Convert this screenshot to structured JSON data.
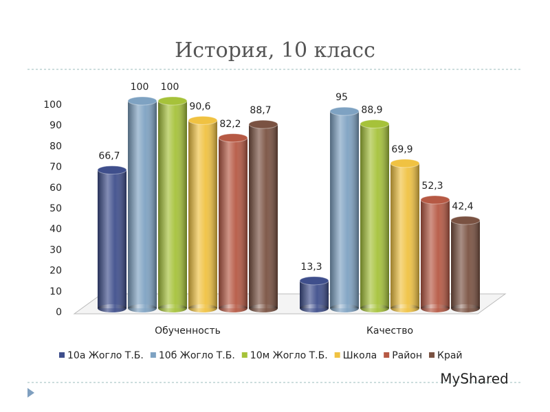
{
  "chart_data": {
    "type": "bar3d",
    "title": "История, 10 класс",
    "categories": [
      "Обученность",
      "Качество"
    ],
    "series": [
      {
        "name": "10а Жогло Т.Б.",
        "color": "#3f4f8c",
        "values": [
          66.7,
          13.3
        ],
        "value_labels": [
          "66,7",
          "13,3"
        ]
      },
      {
        "name": "10б Жогло Т.Б.",
        "color": "#7ea2c2",
        "values": [
          100,
          95
        ],
        "value_labels": [
          "100",
          "95"
        ]
      },
      {
        "name": "10м Жогло Т.Б.",
        "color": "#a6c23a",
        "values": [
          100,
          88.9
        ],
        "value_labels": [
          "100",
          "88,9"
        ]
      },
      {
        "name": "Школа",
        "color": "#f0c242",
        "values": [
          90.6,
          69.9
        ],
        "value_labels": [
          "90,6",
          "69,9"
        ]
      },
      {
        "name": "Район",
        "color": "#b65944",
        "values": [
          82.2,
          52.3
        ],
        "value_labels": [
          "82,2",
          "52,3"
        ]
      },
      {
        "name": "Край",
        "color": "#7a5242",
        "values": [
          88.7,
          42.4
        ],
        "value_labels": [
          "88,7",
          "42,4"
        ]
      }
    ],
    "ylim": [
      0,
      100
    ],
    "yticks": [
      0,
      10,
      20,
      30,
      40,
      50,
      60,
      70,
      80,
      90,
      100
    ],
    "legend": "bottom",
    "watermark": "MyShared"
  }
}
